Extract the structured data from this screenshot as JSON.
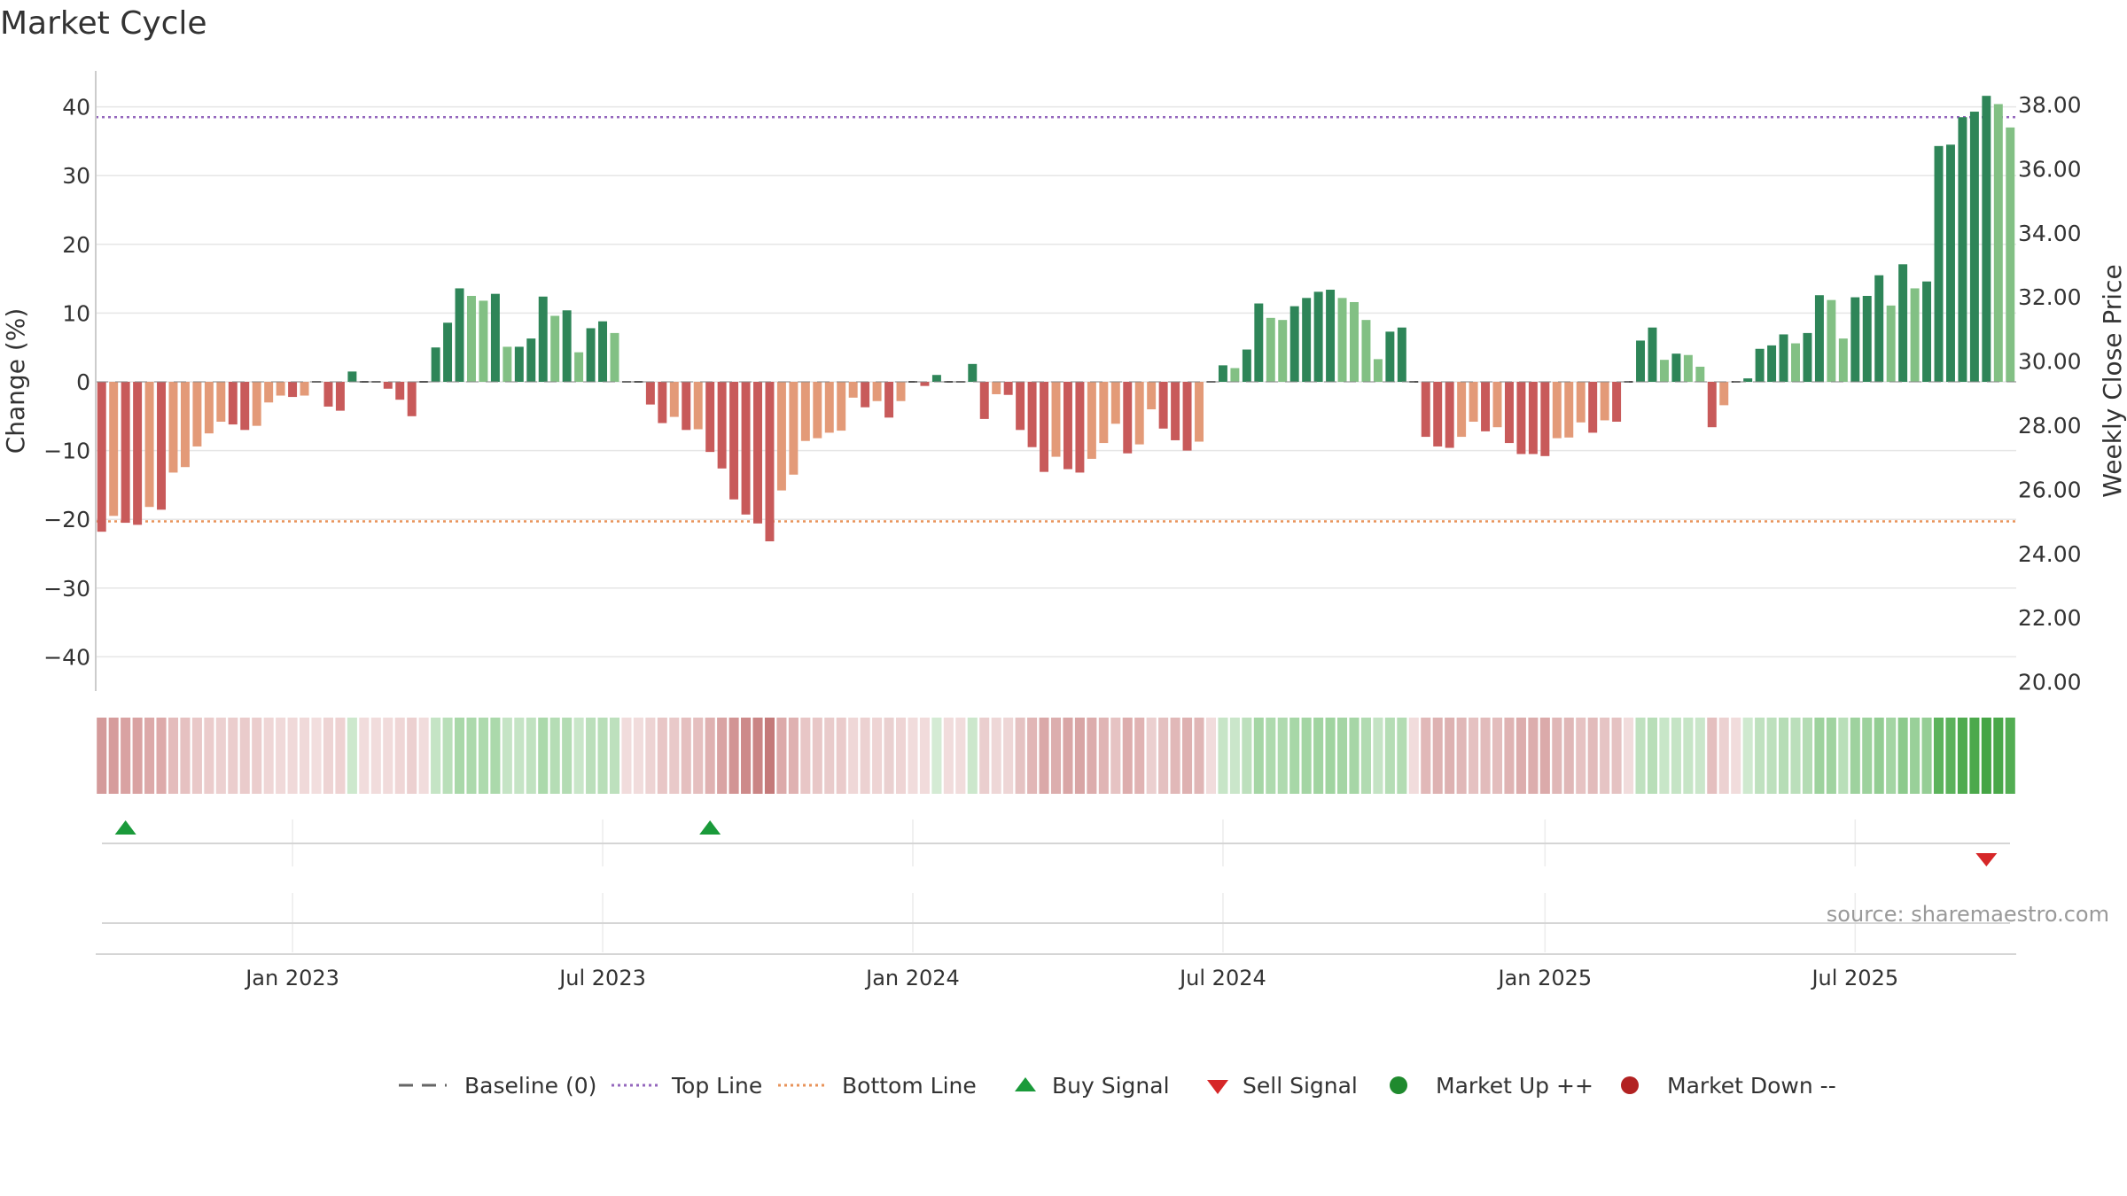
{
  "title": "Market Cycle",
  "source": "source: sharemaestro.com",
  "chart_data": {
    "type": "bar",
    "title": "Market Cycle",
    "ylabel": "Change (%)",
    "y2label": "Weekly Close Price",
    "ylim": [
      -45,
      45
    ],
    "y2lim": [
      19.4,
      38.6
    ],
    "yticks": [
      "40",
      "30",
      "20",
      "10",
      "0",
      "−10",
      "−20",
      "−30",
      "−40"
    ],
    "yticks_values": [
      40,
      30,
      20,
      10,
      0,
      -10,
      -20,
      -30,
      -40
    ],
    "y2ticks": [
      "38.00",
      "36.00",
      "34.00",
      "32.00",
      "30.00",
      "28.00",
      "26.00",
      "24.00",
      "22.00",
      "20.00"
    ],
    "y2ticks_values": [
      38,
      36,
      34,
      32,
      30,
      28,
      26,
      24,
      22,
      20
    ],
    "top_line": 38.5,
    "bottom_line": -20.3,
    "x_start_date": "2022-09-12",
    "xticks": [
      {
        "date": "2023-01-02",
        "label": "Jan 2023"
      },
      {
        "date": "2023-07-03",
        "label": "Jul 2023"
      },
      {
        "date": "2024-01-01",
        "label": "Jan 2024"
      },
      {
        "date": "2024-07-01",
        "label": "Jul 2024"
      },
      {
        "date": "2025-01-06",
        "label": "Jan 2025"
      },
      {
        "date": "2025-07-07",
        "label": "Jul 2025"
      }
    ],
    "values": [
      -21.8,
      -19.5,
      -20.5,
      -20.8,
      -18.2,
      -18.6,
      -13.2,
      -12.4,
      -9.4,
      -7.5,
      -5.8,
      -6.2,
      -7.0,
      -6.4,
      -3.0,
      -2.0,
      -2.2,
      -2.0,
      0.0,
      -3.6,
      -4.2,
      1.5,
      0.0,
      0.0,
      -1.0,
      -2.6,
      -5.0,
      0.0,
      5.0,
      8.6,
      13.6,
      12.5,
      11.8,
      12.8,
      5.1,
      5.1,
      6.3,
      12.4,
      9.6,
      10.4,
      4.3,
      7.8,
      8.8,
      7.1,
      0.0,
      0.0,
      -3.3,
      -6.0,
      -5.1,
      -7.0,
      -6.9,
      -10.2,
      -12.6,
      -17.1,
      -19.3,
      -20.6,
      -23.2,
      -15.8,
      -13.5,
      -8.6,
      -8.2,
      -7.4,
      -7.1,
      -2.3,
      -3.7,
      -2.8,
      -5.2,
      -2.8,
      0.0,
      -0.6,
      1.0,
      0.0,
      0.0,
      2.6,
      -5.4,
      -1.8,
      -1.9,
      -7.0,
      -9.5,
      -13.1,
      -10.9,
      -12.7,
      -13.2,
      -11.2,
      -8.9,
      -6.1,
      -10.4,
      -9.1,
      -4.0,
      -6.8,
      -8.5,
      -10.0,
      -8.7,
      0.0,
      2.4,
      2.0,
      4.7,
      11.4,
      9.3,
      9.0,
      11.0,
      12.2,
      13.1,
      13.4,
      12.2,
      11.6,
      9.0,
      3.3,
      7.3,
      7.9,
      0.0,
      -8.0,
      -9.4,
      -9.6,
      -8.0,
      -5.8,
      -7.2,
      -6.6,
      -8.9,
      -10.5,
      -10.5,
      -10.8,
      -8.2,
      -8.1,
      -5.9,
      -7.4,
      -5.6,
      -5.8,
      0.0,
      6.0,
      7.9,
      3.2,
      4.1,
      3.9,
      2.2,
      -6.6,
      -3.4,
      0.0,
      0.5,
      4.8,
      5.3,
      6.9,
      5.6,
      7.1,
      12.6,
      11.9,
      6.3,
      12.3,
      12.5,
      15.5,
      11.1,
      17.1,
      13.6,
      14.6,
      34.3,
      34.5,
      38.5,
      39.3,
      41.6,
      40.4,
      37.0
    ],
    "bar_colors": {
      "down_strong": "#c85a5a",
      "down_light": "#e39a78",
      "up_strong": "#2e8558",
      "up_light": "#82c084"
    },
    "heat_strip": [
      "#d49a9a",
      "#d69c9c",
      "#d9a2a2",
      "#d9a2a2",
      "#dca9a9",
      "#ddaaaa",
      "#e4bcbc",
      "#e6c1c1",
      "#e9c8c8",
      "#ebcccc",
      "#ecd0d0",
      "#ebcdcd",
      "#eacbcb",
      "#ebcdcd",
      "#efd6d6",
      "#f0d9d9",
      "#f0d9d9",
      "#f0d9d9",
      "#f2dede",
      "#eed4d4",
      "#eed2d2",
      "#cde8cd",
      "#f1dcdc",
      "#f1dcdc",
      "#f1dbdb",
      "#efd6d6",
      "#ecd0d0",
      "#f1dcdc",
      "#c5e4c5",
      "#b9dfb9",
      "#a9d8a9",
      "#acd9ac",
      "#aedaae",
      "#abd9ab",
      "#c5e4c5",
      "#c5e4c5",
      "#c0e2c0",
      "#abd9ab",
      "#b5ddb5",
      "#b3dcb3",
      "#c9e6c9",
      "#bbdfbb",
      "#b8deb8",
      "#bde0bd",
      "#f1dcdc",
      "#f1dcdc",
      "#edd3d3",
      "#e8c6c6",
      "#e9c9c9",
      "#e5bfbf",
      "#e5bfbf",
      "#dfb1b1",
      "#d9a3a3",
      "#d29494",
      "#cd8a8a",
      "#ca8585",
      "#c47a7a",
      "#dcaaaa",
      "#dfb1b1",
      "#e8c6c6",
      "#e8c7c7",
      "#e9cbcb",
      "#eacbcb",
      "#efd7d7",
      "#ecd1d1",
      "#eed4d4",
      "#ead0d0",
      "#eed4d4",
      "#f1dcdc",
      "#f1dbdb",
      "#d4ebd4",
      "#f1dcdc",
      "#f1dcdc",
      "#cce7cc",
      "#eacece",
      "#eed7d7",
      "#eed6d6",
      "#e5c2c2",
      "#e1b6b6",
      "#daa8a8",
      "#dcaeae",
      "#d9a6a6",
      "#d8a5a5",
      "#dcacac",
      "#e0b5b5",
      "#e6c3c3",
      "#ddadad",
      "#e0b3b3",
      "#ebcfcf",
      "#e4c0c0",
      "#e1b8b8",
      "#deb1b1",
      "#e0b6b6",
      "#f1dcdc",
      "#c7e5c7",
      "#caE6ca",
      "#bde0bd",
      "#a5d6a5",
      "#aedaae",
      "#afdaaf",
      "#a7d7a7",
      "#a4d5a4",
      "#a1d4a1",
      "#a0d4a0",
      "#a4d5a4",
      "#a6d6a6",
      "#b1dbb1",
      "#c4e3c4",
      "#b5ddb5",
      "#b3dcb3",
      "#f1dcdc",
      "#e1b8b8",
      "#deb2b2",
      "#ddb1b1",
      "#e0b7b7",
      "#e5c1c1",
      "#e2bbbb",
      "#e3bdbd",
      "#dfb3b3",
      "#dcadad",
      "#dcadad",
      "#dbaaaa",
      "#e0b7b7",
      "#e0b7b7",
      "#e6c2c2",
      "#e2bbbb",
      "#e6c4c4",
      "#e5c2c2",
      "#f1dcdc",
      "#bfe1bf",
      "#b8deb8",
      "#c8e6c8",
      "#c5e4c5",
      "#c6e5c6",
      "#cae6ca",
      "#e4bfbf",
      "#ecd1d1",
      "#f1dcdc",
      "#cfe9cf",
      "#bfe1bf",
      "#bde0bd",
      "#b6ddb6",
      "#bbdfbb",
      "#b4dcb4",
      "#9dd29d",
      "#a0d3a0",
      "#b9dfb9",
      "#9ed29e",
      "#9dd29d",
      "#93cd93",
      "#a3d5a3",
      "#8cca8c",
      "#99d099",
      "#95ce95",
      "#5cb35c",
      "#5bb25b",
      "#4fab4f",
      "#4ca94c",
      "#45a545",
      "#49a849",
      "#52ad52"
    ],
    "buy_signals": [
      "2022-09-26",
      "2023-09-04"
    ],
    "sell_signals": [
      "2025-09-22"
    ],
    "legend": {
      "position": "bottom-center",
      "items": [
        {
          "name": "Baseline (0)",
          "style": "dash",
          "color": "#666666"
        },
        {
          "name": "Top Line",
          "style": "dot",
          "color": "#9467bd"
        },
        {
          "name": "Bottom Line",
          "style": "dot",
          "color": "#e8935a"
        },
        {
          "name": "Buy Signal",
          "style": "triangle-up",
          "color": "#1a9a3a"
        },
        {
          "name": "Sell Signal",
          "style": "triangle-down",
          "color": "#d62728"
        },
        {
          "name": "Market Up ++",
          "style": "circle",
          "color": "#1f8a2e"
        },
        {
          "name": "Market Down --",
          "style": "circle",
          "color": "#b22222"
        }
      ]
    },
    "grid": true
  }
}
